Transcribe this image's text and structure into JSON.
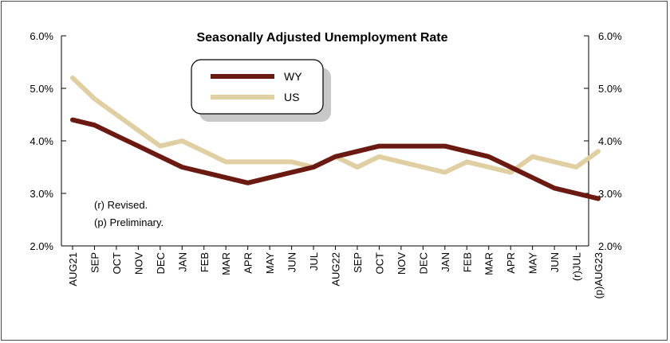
{
  "chart_data": {
    "type": "line",
    "title": "Seasonally Adjusted Unemployment Rate",
    "categories": [
      "AUG21",
      "SEP",
      "OCT",
      "NOV",
      "DEC",
      "JAN",
      "FEB",
      "MAR",
      "APR",
      "MAY",
      "JUN",
      "JUL",
      "AUG22",
      "SEP",
      "OCT",
      "NOV",
      "DEC",
      "JAN",
      "FEB",
      "MAR",
      "APR",
      "MAY",
      "JUN",
      "(r)JUL",
      "(p)AUG23"
    ],
    "series": [
      {
        "name": "WY",
        "color": "#6b1a12",
        "values": [
          4.4,
          4.3,
          4.1,
          3.9,
          3.7,
          3.5,
          3.4,
          3.3,
          3.2,
          3.3,
          3.4,
          3.5,
          3.7,
          3.8,
          3.9,
          3.9,
          3.9,
          3.9,
          3.8,
          3.7,
          3.5,
          3.3,
          3.1,
          3.0,
          2.9
        ]
      },
      {
        "name": "US",
        "color": "#dfcfa3",
        "values": [
          5.2,
          4.8,
          4.5,
          4.2,
          3.9,
          4.0,
          3.8,
          3.6,
          3.6,
          3.6,
          3.6,
          3.5,
          3.7,
          3.5,
          3.7,
          3.6,
          3.5,
          3.4,
          3.6,
          3.5,
          3.4,
          3.7,
          3.6,
          3.5,
          3.8
        ]
      }
    ],
    "ylim": [
      2.0,
      6.0
    ],
    "yticks": [
      "2.0%",
      "3.0%",
      "4.0%",
      "5.0%",
      "6.0%"
    ],
    "ytick_values": [
      2.0,
      3.0,
      4.0,
      5.0,
      6.0
    ],
    "legend_position": "top-left",
    "grid": false,
    "notes": [
      "(r) Revised.",
      "(p) Preliminary."
    ]
  }
}
